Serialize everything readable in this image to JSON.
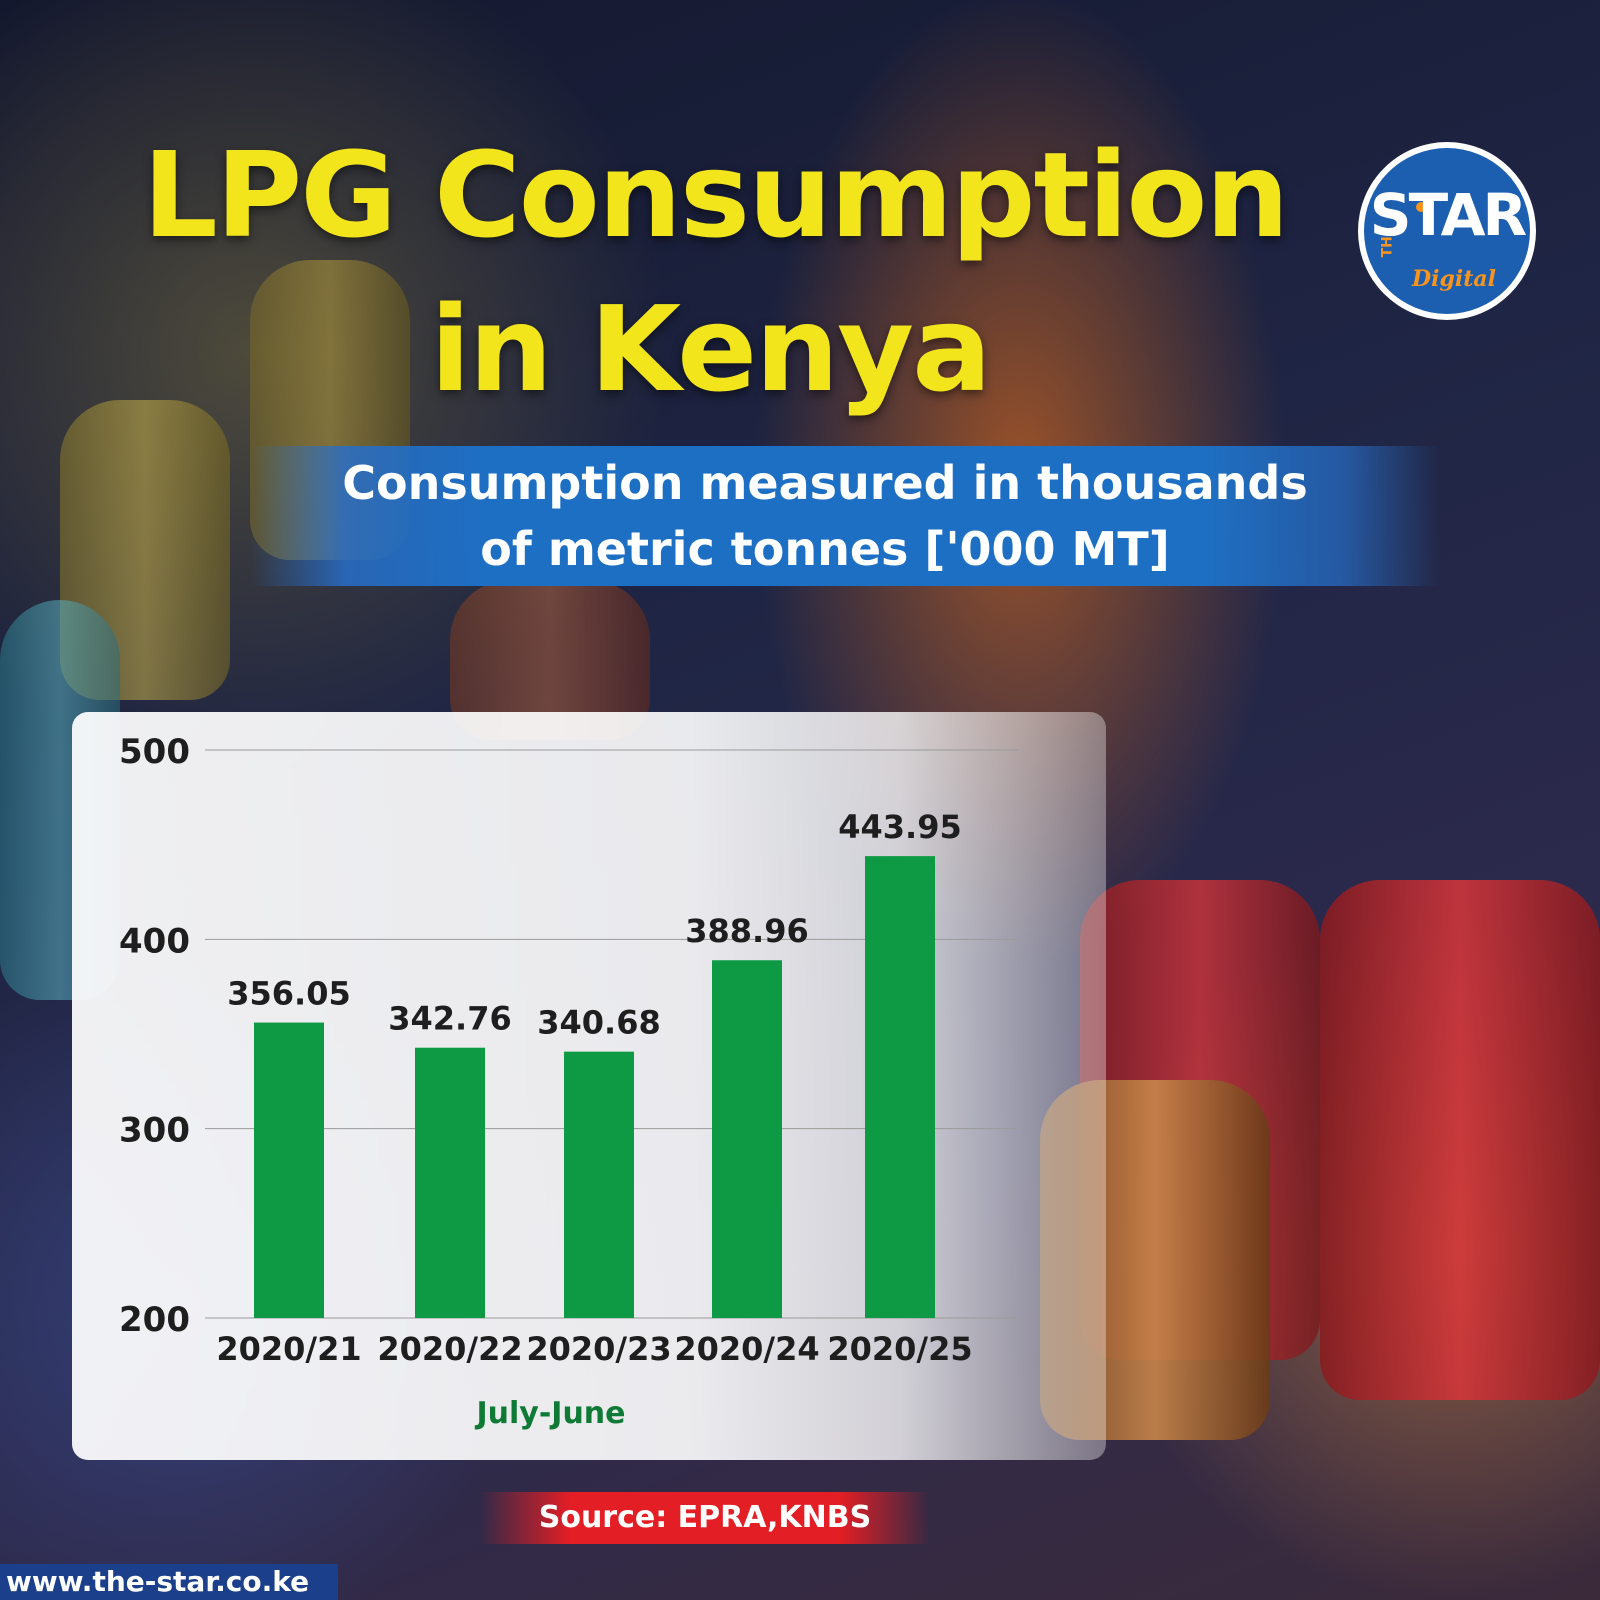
{
  "header": {
    "title_line1": "LPG Consumption",
    "title_line2": "in Kenya",
    "subtitle_line1": "Consumption measured in thousands",
    "subtitle_line2": "of metric tonnes ['000 MT]"
  },
  "logo": {
    "the": "THE",
    "star": "STAR",
    "digital": "Digital"
  },
  "footer": {
    "source": "Source: EPRA,KNBS",
    "url": "www.the-star.co.ke"
  },
  "colors": {
    "bar": "#0e9a44",
    "title": "#f2e51b",
    "subtitle_band": "#1d6fc4",
    "source_band": "#e31e25",
    "xlabel": "#0e7a36"
  },
  "chart_data": {
    "type": "bar",
    "categories": [
      "2020/21",
      "2020/22",
      "2020/23",
      "2020/24",
      "2020/25"
    ],
    "values": [
      356.05,
      342.76,
      340.68,
      388.96,
      443.95
    ],
    "value_labels": [
      "356.05",
      "342.76",
      "340.68",
      "388.96",
      "443.95"
    ],
    "title": "",
    "xlabel": "July-June",
    "ylabel": "",
    "ylim": [
      200,
      500
    ],
    "yticks": [
      200,
      300,
      400,
      500
    ],
    "grid": true
  }
}
